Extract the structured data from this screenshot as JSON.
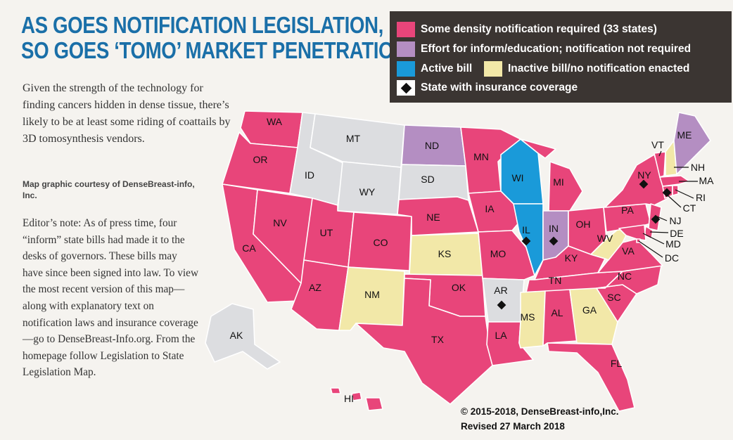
{
  "title": {
    "line1": "AS GOES NOTIFICATION LEGISLATION,",
    "line2": "SO GOES ‘TOMO’ MARKET PENETRATION?"
  },
  "intro": "Given the strength of the technology for finding cancers hidden in dense tissue, there’s likely to be at least some riding of coattails by 3D tomosynthesis vendors.",
  "credit": "Map graphic courtesy of DenseBreast-info, Inc.",
  "editors_note": "Editor’s note: As of press time, four “inform” state bills had made it to the desks of governors. These bills may have since been signed into law. To view the most recent version of this map—along with explanatory text on notification laws and insurance coverage—go to DenseBreast-Info.org. From the homepage follow Legislation to State Legislation Map.",
  "legend": {
    "notification": "Some density notification required (33 states)",
    "inform": "Effort for inform/education; notification not required",
    "active": "Active bill",
    "inactive": "Inactive bill/no notification enacted",
    "insurance": "State with insurance coverage"
  },
  "colors": {
    "notification": "#e8457a",
    "inform": "#b48ec2",
    "active": "#1a9ad9",
    "inactive": "#f2e8a8",
    "none": "#dcdde0",
    "legend_bg": "#3b3532",
    "title": "#1a6fa8"
  },
  "states": [
    {
      "abbr": "WA",
      "status": "notification",
      "insurance": false
    },
    {
      "abbr": "OR",
      "status": "notification",
      "insurance": false
    },
    {
      "abbr": "CA",
      "status": "notification",
      "insurance": false
    },
    {
      "abbr": "NV",
      "status": "notification",
      "insurance": false
    },
    {
      "abbr": "ID",
      "status": "none",
      "insurance": false
    },
    {
      "abbr": "MT",
      "status": "none",
      "insurance": false
    },
    {
      "abbr": "WY",
      "status": "none",
      "insurance": false
    },
    {
      "abbr": "UT",
      "status": "notification",
      "insurance": false
    },
    {
      "abbr": "AZ",
      "status": "notification",
      "insurance": false
    },
    {
      "abbr": "CO",
      "status": "notification",
      "insurance": false
    },
    {
      "abbr": "NM",
      "status": "inactive",
      "insurance": false
    },
    {
      "abbr": "ND",
      "status": "inform",
      "insurance": false
    },
    {
      "abbr": "SD",
      "status": "none",
      "insurance": false
    },
    {
      "abbr": "NE",
      "status": "notification",
      "insurance": false
    },
    {
      "abbr": "KS",
      "status": "inactive",
      "insurance": false
    },
    {
      "abbr": "OK",
      "status": "notification",
      "insurance": false
    },
    {
      "abbr": "TX",
      "status": "notification",
      "insurance": false
    },
    {
      "abbr": "MN",
      "status": "notification",
      "insurance": false
    },
    {
      "abbr": "IA",
      "status": "notification",
      "insurance": false
    },
    {
      "abbr": "MO",
      "status": "notification",
      "insurance": false
    },
    {
      "abbr": "AR",
      "status": "none",
      "insurance": true
    },
    {
      "abbr": "LA",
      "status": "notification",
      "insurance": false
    },
    {
      "abbr": "WI",
      "status": "active",
      "insurance": false
    },
    {
      "abbr": "IL",
      "status": "active",
      "insurance": true
    },
    {
      "abbr": "MI",
      "status": "notification",
      "insurance": false
    },
    {
      "abbr": "IN",
      "status": "inform",
      "insurance": true
    },
    {
      "abbr": "OH",
      "status": "notification",
      "insurance": false
    },
    {
      "abbr": "KY",
      "status": "notification",
      "insurance": false
    },
    {
      "abbr": "TN",
      "status": "notification",
      "insurance": false
    },
    {
      "abbr": "MS",
      "status": "inactive",
      "insurance": false
    },
    {
      "abbr": "AL",
      "status": "notification",
      "insurance": false
    },
    {
      "abbr": "GA",
      "status": "inactive",
      "insurance": false
    },
    {
      "abbr": "FL",
      "status": "notification",
      "insurance": false
    },
    {
      "abbr": "SC",
      "status": "notification",
      "insurance": false
    },
    {
      "abbr": "NC",
      "status": "notification",
      "insurance": false
    },
    {
      "abbr": "VA",
      "status": "notification",
      "insurance": false
    },
    {
      "abbr": "WV",
      "status": "inactive",
      "insurance": false
    },
    {
      "abbr": "PA",
      "status": "notification",
      "insurance": false
    },
    {
      "abbr": "NY",
      "status": "notification",
      "insurance": true
    },
    {
      "abbr": "VT",
      "status": "notification",
      "insurance": false
    },
    {
      "abbr": "NH",
      "status": "inactive",
      "insurance": false
    },
    {
      "abbr": "ME",
      "status": "inform",
      "insurance": false
    },
    {
      "abbr": "MA",
      "status": "notification",
      "insurance": false
    },
    {
      "abbr": "RI",
      "status": "notification",
      "insurance": false
    },
    {
      "abbr": "CT",
      "status": "notification",
      "insurance": true
    },
    {
      "abbr": "NJ",
      "status": "notification",
      "insurance": true
    },
    {
      "abbr": "DE",
      "status": "notification",
      "insurance": false
    },
    {
      "abbr": "MD",
      "status": "notification",
      "insurance": false
    },
    {
      "abbr": "DC",
      "status": "notification",
      "insurance": false
    },
    {
      "abbr": "AK",
      "status": "none",
      "insurance": false
    },
    {
      "abbr": "HI",
      "status": "notification",
      "insurance": false
    }
  ],
  "copyright": {
    "line1": "© 2015-2018, DenseBreast-info,Inc.",
    "line2": "Revised 27 March 2018"
  }
}
